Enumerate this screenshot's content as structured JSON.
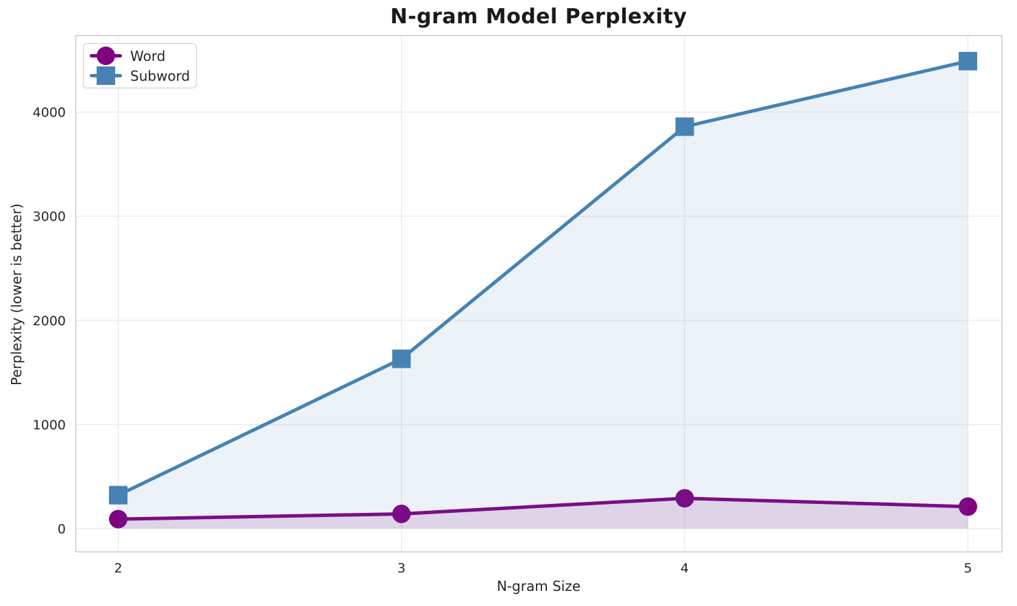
{
  "chart_data": {
    "type": "line",
    "title": "N-gram Model Perplexity",
    "xlabel": "N-gram Size",
    "ylabel": "Perplexity (lower is better)",
    "x": [
      2,
      3,
      4,
      5
    ],
    "x_ticks": [
      "2",
      "3",
      "4",
      "5"
    ],
    "y_ticks": [
      "0",
      "1000",
      "2000",
      "3000",
      "4000"
    ],
    "y_tick_values": [
      0,
      1000,
      2000,
      3000,
      4000
    ],
    "series": [
      {
        "name": "Word",
        "values": [
          90,
          140,
          290,
          210
        ],
        "color": "#800080",
        "marker": "circle",
        "fill_opacity": 0.13
      },
      {
        "name": "Subword",
        "values": [
          320,
          1630,
          3860,
          4490
        ],
        "color": "#4682b4",
        "marker": "square",
        "fill_opacity": 0.1
      }
    ],
    "xlim": [
      1.85,
      5.12
    ],
    "ylim": [
      -225,
      4735
    ],
    "grid": true,
    "legend_position": "upper left",
    "background_color": "#ffffff",
    "grid_color": "#e8e8e8",
    "spine_color": "#cccccc",
    "text_color": "#262626",
    "title_color": "#1a1a1a"
  }
}
